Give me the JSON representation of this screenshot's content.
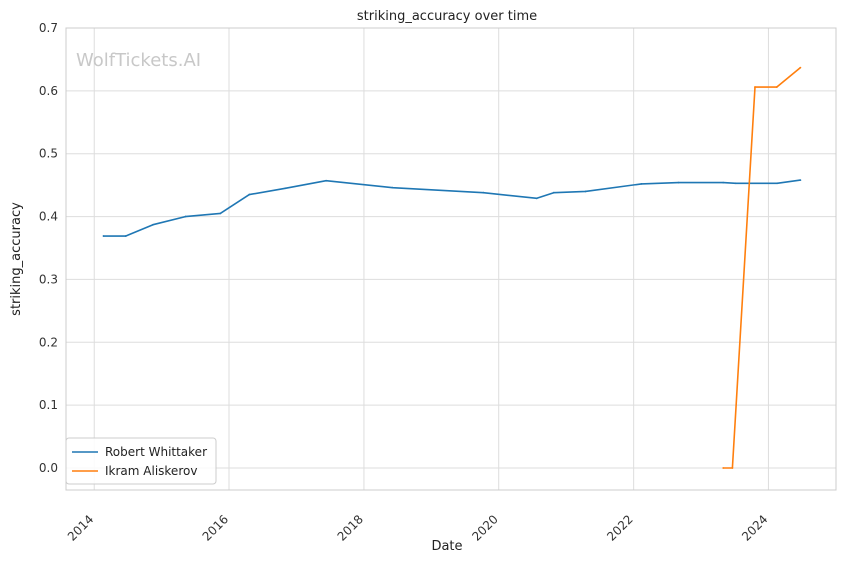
{
  "chart_data": {
    "type": "line",
    "title": "striking_accuracy over time",
    "xlabel": "Date",
    "ylabel": "striking_accuracy",
    "watermark": "WolfTickets.AI",
    "xlim": [
      "2013-08-01",
      "2025-01-01"
    ],
    "ylim": [
      -0.035,
      0.7
    ],
    "x_ticks": [
      "2014",
      "2016",
      "2018",
      "2020",
      "2022",
      "2024"
    ],
    "y_ticks": [
      "0.0",
      "0.1",
      "0.2",
      "0.3",
      "0.4",
      "0.5",
      "0.6",
      "0.7"
    ],
    "grid": true,
    "legend_position": "lower-left",
    "series": [
      {
        "name": "Robert Whittaker",
        "color": "#1f77b4",
        "points": [
          {
            "x": "2014-02-20",
            "y": 0.369
          },
          {
            "x": "2014-06-20",
            "y": 0.369
          },
          {
            "x": "2014-11-15",
            "y": 0.387
          },
          {
            "x": "2015-05-10",
            "y": 0.4
          },
          {
            "x": "2015-11-15",
            "y": 0.405
          },
          {
            "x": "2016-04-20",
            "y": 0.435
          },
          {
            "x": "2016-11-01",
            "y": 0.445
          },
          {
            "x": "2017-06-10",
            "y": 0.457
          },
          {
            "x": "2018-06-05",
            "y": 0.446
          },
          {
            "x": "2019-10-10",
            "y": 0.438
          },
          {
            "x": "2020-07-25",
            "y": 0.429
          },
          {
            "x": "2020-10-25",
            "y": 0.438
          },
          {
            "x": "2021-04-15",
            "y": 0.44
          },
          {
            "x": "2022-02-12",
            "y": 0.452
          },
          {
            "x": "2022-09-01",
            "y": 0.454
          },
          {
            "x": "2023-05-01",
            "y": 0.454
          },
          {
            "x": "2023-07-08",
            "y": 0.453
          },
          {
            "x": "2024-02-17",
            "y": 0.453
          },
          {
            "x": "2024-06-22",
            "y": 0.458
          }
        ]
      },
      {
        "name": "Ikram Aliskerov",
        "color": "#ff7f0e",
        "points": [
          {
            "x": "2023-05-01",
            "y": 0.0
          },
          {
            "x": "2023-06-20",
            "y": 0.0
          },
          {
            "x": "2023-10-20",
            "y": 0.606
          },
          {
            "x": "2024-02-15",
            "y": 0.606
          },
          {
            "x": "2024-06-22",
            "y": 0.637
          }
        ]
      }
    ]
  }
}
